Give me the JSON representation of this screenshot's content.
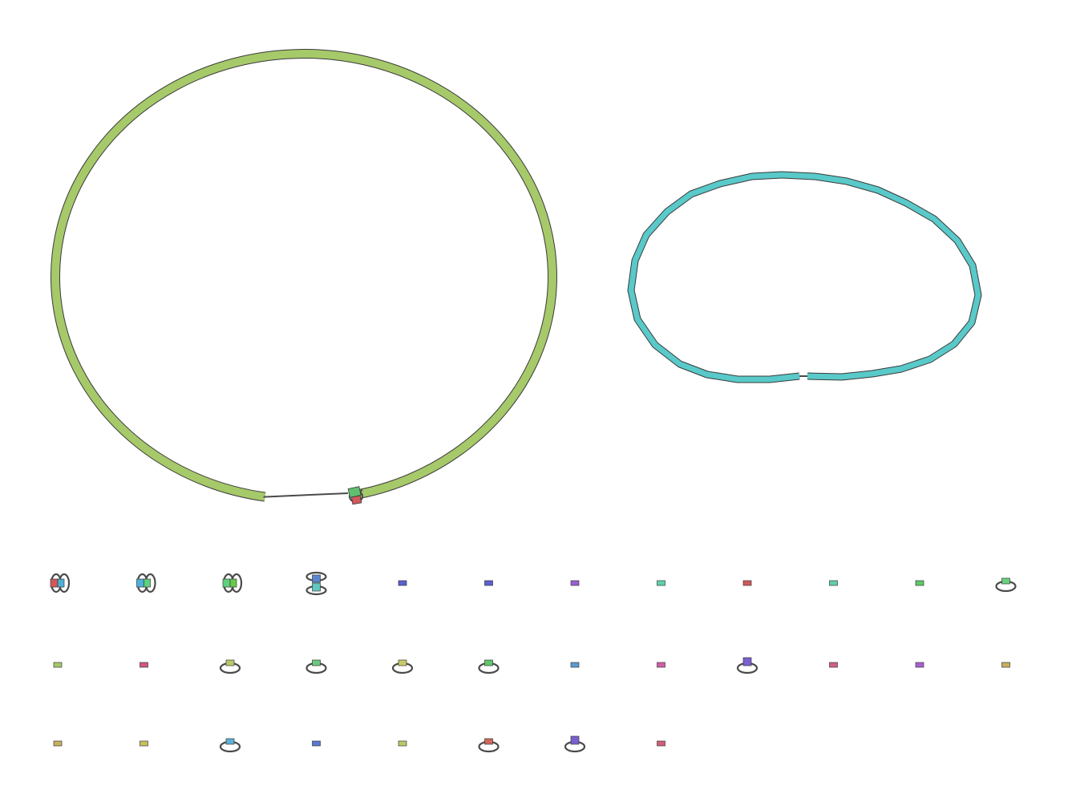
{
  "graph": {
    "colors": {
      "background": "#ffffff",
      "outline": "#3a3a3a",
      "edge": "#4a4a4a"
    },
    "large_components": [
      {
        "name": "contig-circle-green",
        "color": "#a6c96a",
        "shape": "circle-with-junction",
        "junction_nodes": [
          "#5fbf6e",
          "#d1585c"
        ]
      },
      {
        "name": "contig-loop-cyan",
        "color": "#59c9c9",
        "shape": "oval-with-gap"
      }
    ],
    "small_components": [
      {
        "kind": "double-loop-pair",
        "colors": [
          "#d1585c",
          "#4fb0d6"
        ]
      },
      {
        "kind": "double-loop-pair",
        "colors": [
          "#4fb0d6",
          "#5fd17e"
        ]
      },
      {
        "kind": "double-loop-pair",
        "colors": [
          "#5fd17e",
          "#6ac94a"
        ]
      },
      {
        "kind": "stacked-loop-pair",
        "colors": [
          "#5a86d1",
          "#5fc9c0"
        ]
      },
      {
        "kind": "node",
        "colors": [
          "#5a5fd1"
        ]
      },
      {
        "kind": "node",
        "colors": [
          "#5a5fd1"
        ]
      },
      {
        "kind": "node",
        "colors": [
          "#9a5fd1"
        ]
      },
      {
        "kind": "node",
        "colors": [
          "#5fd1a8"
        ]
      },
      {
        "kind": "node",
        "colors": [
          "#d1585c"
        ]
      },
      {
        "kind": "node",
        "colors": [
          "#5fd1a8"
        ]
      },
      {
        "kind": "node",
        "colors": [
          "#5fc96a"
        ]
      },
      {
        "kind": "self-loop",
        "colors": [
          "#6ad17e"
        ]
      },
      {
        "kind": "node",
        "colors": [
          "#a6c96a"
        ]
      },
      {
        "kind": "node",
        "colors": [
          "#d1587e"
        ]
      },
      {
        "kind": "self-loop",
        "colors": [
          "#b8c96a"
        ]
      },
      {
        "kind": "self-loop",
        "colors": [
          "#6ac97e"
        ]
      },
      {
        "kind": "self-loop",
        "colors": [
          "#c9c96a"
        ]
      },
      {
        "kind": "self-loop",
        "colors": [
          "#5fc96a"
        ]
      },
      {
        "kind": "node",
        "colors": [
          "#5a9ad1"
        ]
      },
      {
        "kind": "node",
        "colors": [
          "#d15fa8"
        ]
      },
      {
        "kind": "self-loop",
        "colors": [
          "#7a5fd1"
        ]
      },
      {
        "kind": "node",
        "colors": [
          "#d15f8a"
        ]
      },
      {
        "kind": "node",
        "colors": [
          "#a85fd1"
        ]
      },
      {
        "kind": "node",
        "colors": [
          "#c9b05f"
        ]
      },
      {
        "kind": "node",
        "colors": [
          "#c9b05f"
        ]
      },
      {
        "kind": "node",
        "colors": [
          "#c9c05f"
        ]
      },
      {
        "kind": "self-loop",
        "colors": [
          "#5fb0d6"
        ]
      },
      {
        "kind": "node",
        "colors": [
          "#5a7ad1"
        ]
      },
      {
        "kind": "node",
        "colors": [
          "#b8c96a"
        ]
      },
      {
        "kind": "self-loop",
        "colors": [
          "#d1685c"
        ]
      },
      {
        "kind": "self-loop",
        "colors": [
          "#7a5fd1"
        ]
      },
      {
        "kind": "node",
        "colors": [
          "#d15f7a"
        ]
      }
    ]
  }
}
